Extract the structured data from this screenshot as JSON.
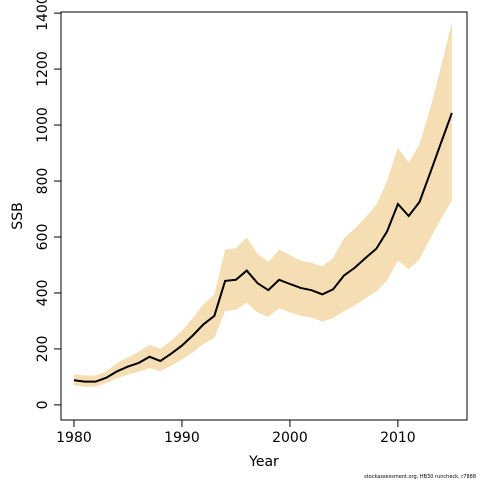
{
  "chart_data": {
    "type": "line",
    "xlabel": "Year",
    "ylabel": "SSB",
    "footnote": "stockassessment.org, HB30 runcheck, r7888",
    "x": [
      1980,
      1981,
      1982,
      1983,
      1984,
      1985,
      1986,
      1987,
      1988,
      1989,
      1990,
      1991,
      1992,
      1993,
      1994,
      1995,
      1996,
      1997,
      1998,
      1999,
      2000,
      2001,
      2002,
      2003,
      2004,
      2005,
      2006,
      2007,
      2008,
      2009,
      2010,
      2011,
      2012,
      2013,
      2014,
      2015
    ],
    "values": [
      88,
      83,
      83,
      97,
      120,
      137,
      150,
      172,
      157,
      183,
      212,
      248,
      288,
      318,
      443,
      447,
      480,
      435,
      410,
      447,
      432,
      418,
      410,
      395,
      413,
      462,
      490,
      525,
      558,
      620,
      718,
      675,
      725,
      830,
      937,
      1043
    ],
    "upper": [
      110,
      105,
      105,
      120,
      150,
      170,
      190,
      215,
      200,
      230,
      265,
      310,
      360,
      395,
      555,
      560,
      598,
      540,
      510,
      555,
      535,
      515,
      508,
      495,
      525,
      595,
      630,
      670,
      715,
      800,
      920,
      865,
      930,
      1060,
      1210,
      1365
    ],
    "lower": [
      70,
      65,
      65,
      78,
      95,
      108,
      118,
      132,
      120,
      140,
      162,
      187,
      218,
      240,
      335,
      340,
      365,
      330,
      315,
      345,
      330,
      318,
      312,
      298,
      310,
      335,
      355,
      380,
      405,
      445,
      515,
      485,
      520,
      595,
      665,
      730
    ],
    "color": "#000000",
    "band_color": "#f5deb3",
    "xlim": [
      1978.8,
      2016.4
    ],
    "ylim": [
      -54,
      1404
    ],
    "xticks": [
      1980,
      1990,
      2000,
      2010
    ],
    "yticks": [
      0,
      200,
      400,
      600,
      800,
      1000,
      1200,
      1400
    ]
  }
}
